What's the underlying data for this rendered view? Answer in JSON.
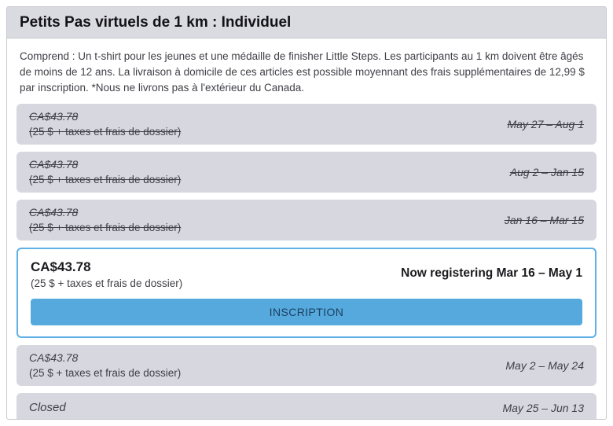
{
  "panel": {
    "title": "Petits Pas virtuels de 1 km : Individuel",
    "description": "Comprend : Un t-shirt pour les jeunes et une médaille de finisher Little Steps. Les participants au 1 km doivent être âgés de moins de 12 ans. La livraison à domicile de ces articles est possible moyennant des frais supplémentaires de 12,99 $ par inscription. *Nous ne livrons pas à l'extérieur du Canada."
  },
  "pricing_periods": [
    {
      "price": "CA$43.78",
      "detail": "(25 $ + taxes et frais de dossier)",
      "dates": "May 27 – Aug 1",
      "status": "past"
    },
    {
      "price": "CA$43.78",
      "detail": "(25 $ + taxes et frais de dossier)",
      "dates": "Aug 2 – Jan 15",
      "status": "past"
    },
    {
      "price": "CA$43.78",
      "detail": "(25 $ + taxes et frais de dossier)",
      "dates": "Jan 16 – Mar 15",
      "status": "past"
    },
    {
      "price": "CA$43.78",
      "detail": "(25 $ + taxes et frais de dossier)",
      "dates": "Now registering Mar 16 – May 1",
      "status": "current",
      "button_label": "INSCRIPTION"
    },
    {
      "price": "CA$43.78",
      "detail": "(25 $ + taxes et frais de dossier)",
      "dates": "May 2 – May 24",
      "status": "future"
    },
    {
      "price": "Closed",
      "detail": "",
      "dates": "May 25 – Jun 13",
      "status": "closed"
    }
  ],
  "colors": {
    "accent-blue": "#55a9dc",
    "active-border": "#5fb0e5",
    "button-text": "#1c3f60",
    "row-bg": "#d7d7df",
    "header-bg": "#dadae1",
    "panel-border": "#c9c9ce",
    "text": "#3f3f46",
    "title-text": "#131316"
  }
}
